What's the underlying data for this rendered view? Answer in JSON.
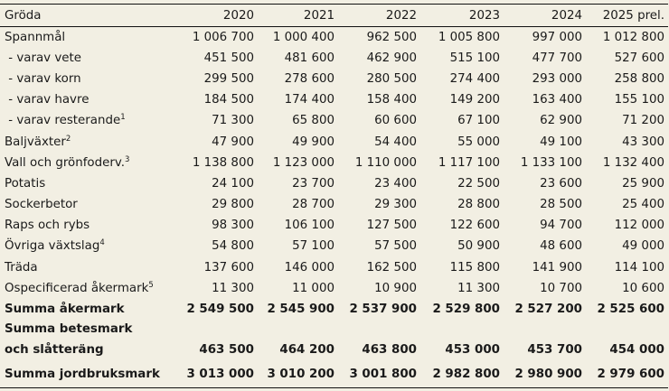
{
  "header": {
    "crop": "Gröda",
    "years": [
      "2020",
      "2021",
      "2022",
      "2023",
      "2024",
      "2025 prel."
    ]
  },
  "rows": [
    {
      "label": "Spannmål",
      "values": [
        "1 006 700",
        "1 000 400",
        "962 500",
        "1 005 800",
        "997 000",
        "1 012 800"
      ]
    },
    {
      "label": " - varav vete",
      "values": [
        "451 500",
        "481 600",
        "462 900",
        "515 100",
        "477 700",
        "527 600"
      ]
    },
    {
      "label": " - varav korn",
      "values": [
        "299 500",
        "278 600",
        "280 500",
        "274 400",
        "293 000",
        "258 800"
      ]
    },
    {
      "label": " - varav havre",
      "values": [
        "184 500",
        "174 400",
        "158 400",
        "149 200",
        "163 400",
        "155 100"
      ]
    },
    {
      "label": " - varav resterande",
      "note": "1",
      "values": [
        "71 300",
        "65 800",
        "60 600",
        "67 100",
        "62 900",
        "71 200"
      ]
    },
    {
      "label": "Baljväxter",
      "note": "2",
      "values": [
        "47 900",
        "49 900",
        "54 400",
        "55 000",
        "49 100",
        "43 300"
      ]
    },
    {
      "label": "Vall och grönfoderv.",
      "note": "3",
      "values": [
        "1 138 800",
        "1 123 000",
        "1 110 000",
        "1 117 100",
        "1 133 100",
        "1 132 400"
      ]
    },
    {
      "label": "Potatis",
      "values": [
        "24 100",
        "23 700",
        "23 400",
        "22 500",
        "23 600",
        "25 900"
      ]
    },
    {
      "label": "Sockerbetor",
      "values": [
        "29 800",
        "28 700",
        "29 300",
        "28 800",
        "28 500",
        "25 400"
      ]
    },
    {
      "label": "Raps och rybs",
      "values": [
        "98 300",
        "106 100",
        "127 500",
        "122 600",
        "94 700",
        "112 000"
      ]
    },
    {
      "label": "Övriga växtslag",
      "note": "4",
      "values": [
        "54 800",
        "57 100",
        "57 500",
        "50 900",
        "48 600",
        "49 000"
      ]
    },
    {
      "label": "Träda",
      "values": [
        "137 600",
        "146 000",
        "162 500",
        "115 800",
        "141 900",
        "114 100"
      ]
    },
    {
      "label": "Ospecificerad åkermark",
      "note": "5",
      "values": [
        "11 300",
        "11 000",
        "10 900",
        "11 300",
        "10 700",
        "10 600"
      ]
    }
  ],
  "sums": {
    "arable": {
      "label": "Summa åkermark",
      "values": [
        "2 549 500",
        "2 545 900",
        "2 537 900",
        "2 529 800",
        "2 527 200",
        "2 525 600"
      ]
    },
    "pasture": {
      "label_line1": "Summa betesmark",
      "label_line2": "och slåtteräng",
      "values": [
        "463 500",
        "464 200",
        "463 800",
        "453 000",
        "453 700",
        "454 000"
      ]
    },
    "total": {
      "label": "Summa jordbruksmark",
      "values": [
        "3 013 000",
        "3 010 200",
        "3 001 800",
        "2 982 800",
        "2 980 900",
        "2 979 600"
      ]
    }
  }
}
